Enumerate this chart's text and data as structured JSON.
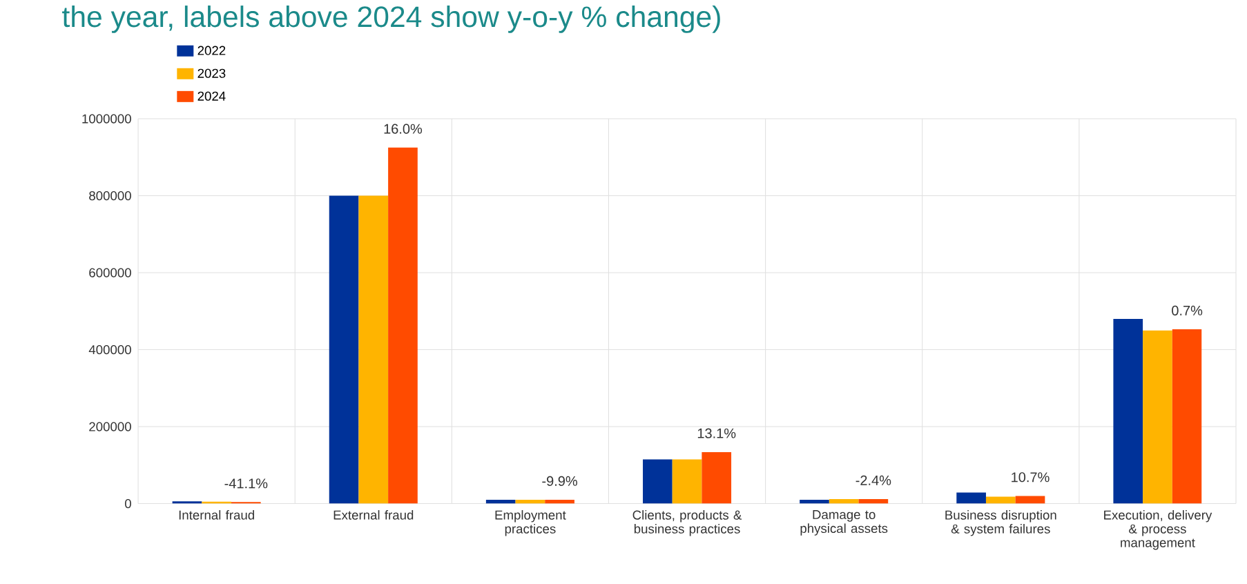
{
  "chart_data": {
    "type": "bar",
    "title": "the year, labels above 2024 show y-o-y % change)",
    "categories": [
      "Internal fraud",
      "External fraud",
      "Employment practices",
      "Clients, products & business practices",
      "Damage to physical assets",
      "Business disruption & system failures",
      "Execution, delivery & process management"
    ],
    "series": [
      {
        "name": "2022",
        "color": "#003299",
        "values": [
          6000,
          800000,
          10000,
          115000,
          10000,
          29000,
          480000
        ]
      },
      {
        "name": "2023",
        "color": "#ffb400",
        "values": [
          5000,
          800000,
          10000,
          115000,
          12000,
          18000,
          450000
        ]
      },
      {
        "name": "2024",
        "color": "#ff4b00",
        "values": [
          4000,
          925000,
          10000,
          134000,
          12000,
          20000,
          453000
        ]
      }
    ],
    "annotations": [
      "-41.1%",
      "16.0%",
      "-9.9%",
      "13.1%",
      "-2.4%",
      "10.7%",
      "0.7%"
    ],
    "ylim": [
      0,
      1000000
    ],
    "yticks": [
      0,
      200000,
      400000,
      600000,
      800000,
      1000000
    ],
    "grid": true,
    "legend": "top left"
  }
}
